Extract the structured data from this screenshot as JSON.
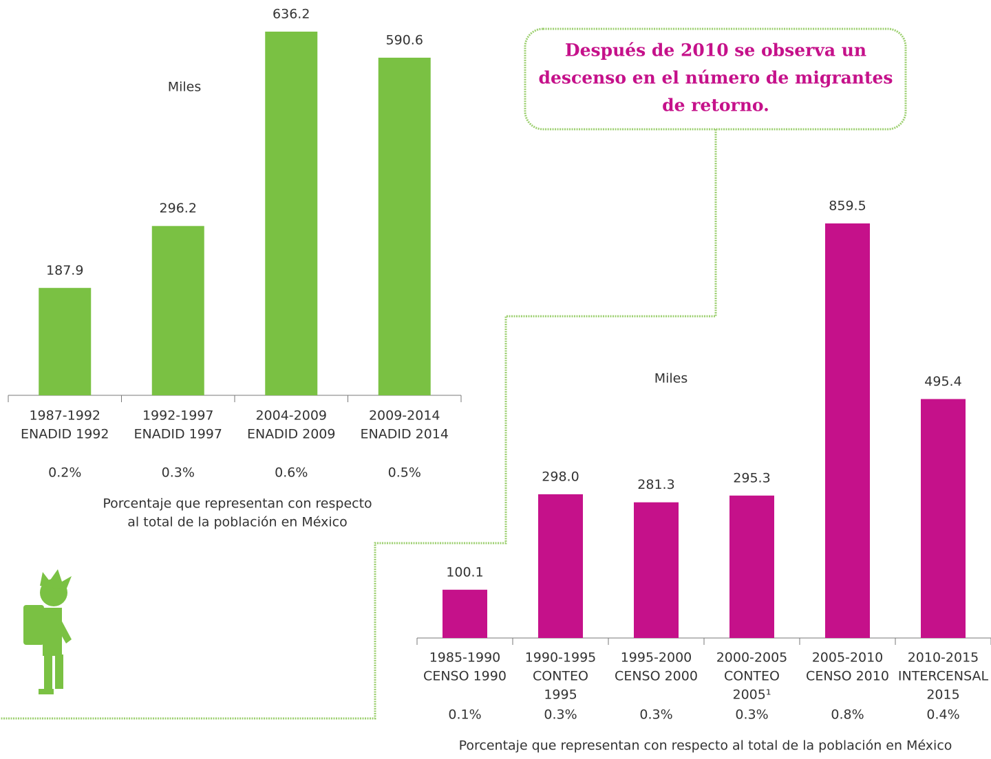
{
  "chart_data": [
    {
      "type": "bar",
      "color": "#7ac143",
      "unit_label": "Miles",
      "categories": [
        "1987-1992",
        "1992-1997",
        "2004-2009",
        "2009-2014"
      ],
      "sources": [
        [
          "ENADID 1992"
        ],
        [
          "ENADID 1997"
        ],
        [
          "ENADID 2009"
        ],
        [
          "ENADID 2014"
        ]
      ],
      "values": [
        187.9,
        296.2,
        636.2,
        590.6
      ],
      "percent_labels": [
        "0.2%",
        "0.3%",
        "0.6%",
        "0.5%"
      ],
      "note": [
        "Porcentaje que representan con respecto",
        "al total de la población en México"
      ]
    },
    {
      "type": "bar",
      "color": "#c5118a",
      "unit_label": "Miles",
      "categories": [
        "1985-1990",
        "1990-1995",
        "1995-2000",
        "2000-2005",
        "2005-2010",
        "2010-2015"
      ],
      "sources": [
        [
          "CENSO 1990"
        ],
        [
          "CONTEO",
          "1995"
        ],
        [
          "CENSO 2000"
        ],
        [
          "CONTEO",
          "2005¹"
        ],
        [
          "CENSO 2010"
        ],
        [
          "INTERCENSAL",
          "2015"
        ]
      ],
      "values": [
        100.1,
        298.0,
        281.3,
        295.3,
        859.5,
        495.4
      ],
      "value_labels": [
        "100.1",
        "298.0",
        "281.3",
        "295.3",
        "859.5",
        "495.4"
      ],
      "percent_labels": [
        "0.1%",
        "0.3%",
        "0.3%",
        "0.3%",
        "0.8%",
        "0.4%"
      ],
      "note": [
        "Porcentaje que representan con respecto al total de la población en México"
      ]
    }
  ],
  "callout": [
    "Después de 2010 se observa un",
    "descenso en el número de migrantes",
    "de retorno."
  ]
}
